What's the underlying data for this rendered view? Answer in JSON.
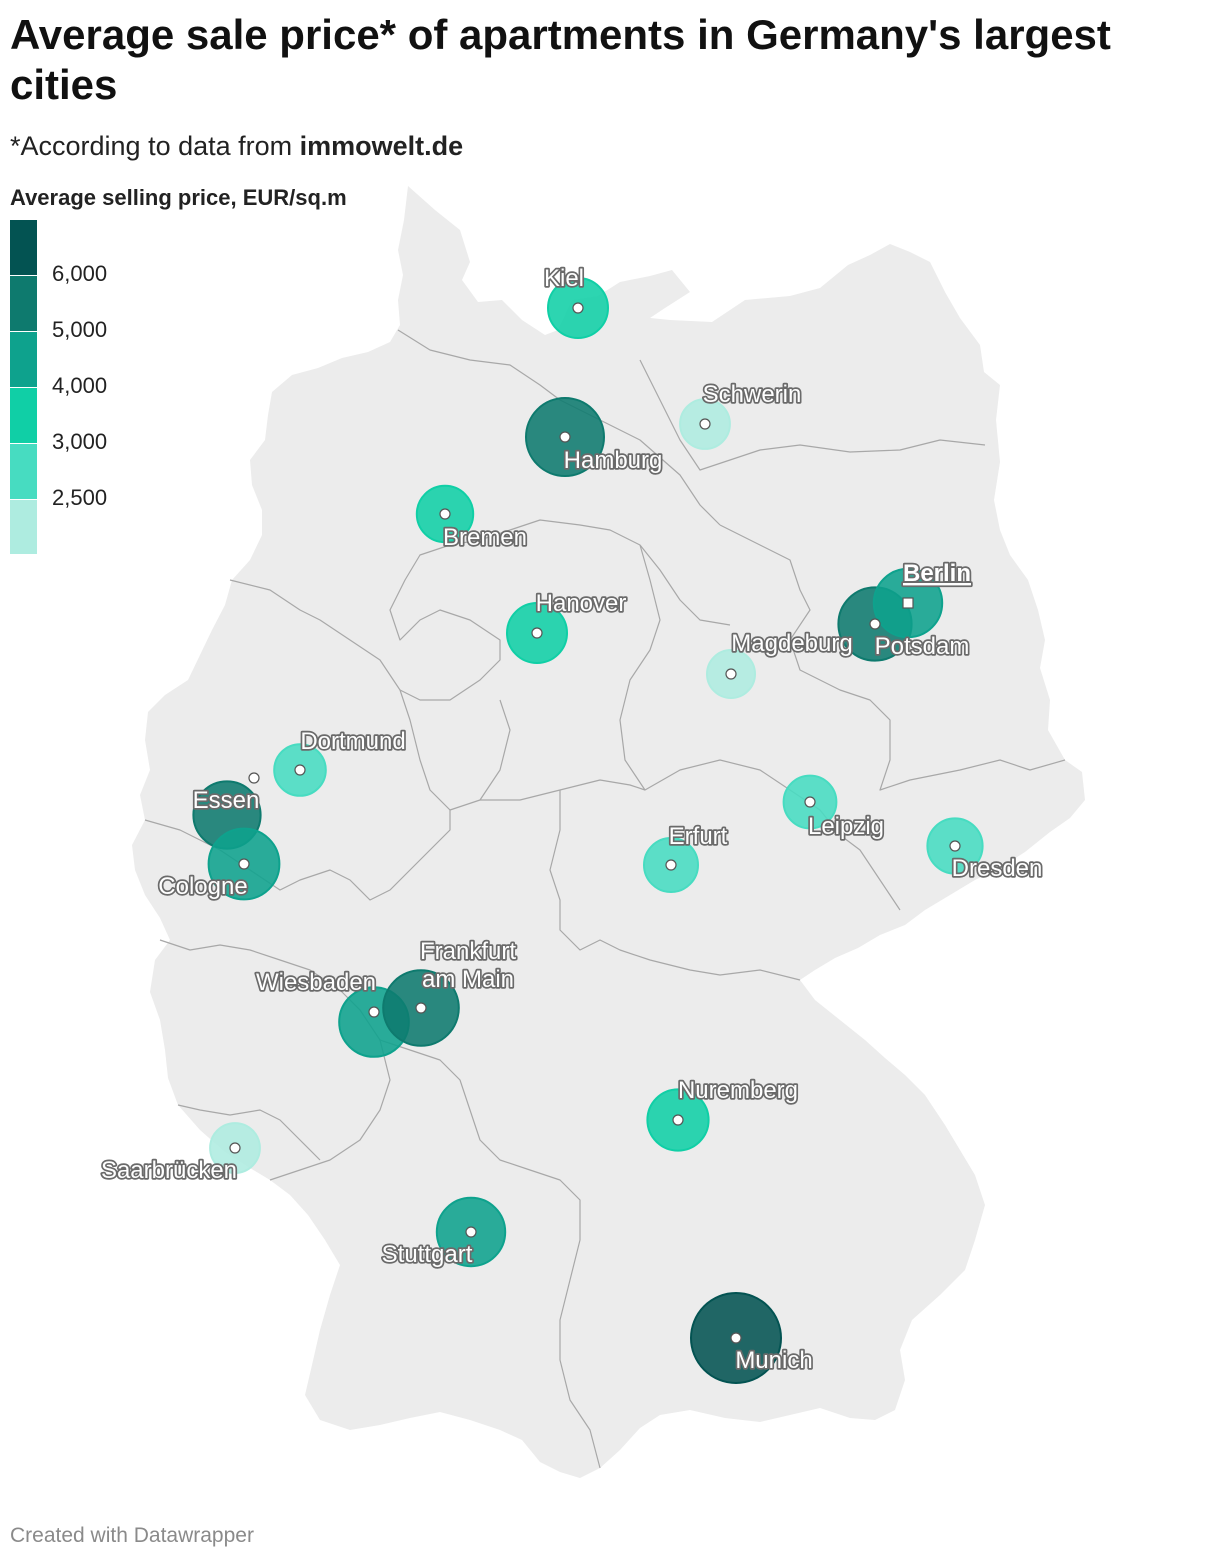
{
  "title": "Average sale price* of apartments in Germany's largest cities",
  "subtitle": {
    "prefix": "*According to data from ",
    "source": "immowelt.de"
  },
  "legend": {
    "title": "Average selling price, EUR/sq.m",
    "colors": [
      "#035352",
      "#0e7a6e",
      "#0ea28d",
      "#10cfa6",
      "#47dcc1",
      "#aeece0"
    ],
    "ticks": [
      "6,000",
      "5,000",
      "4,000",
      "3,000",
      "2,500"
    ]
  },
  "footer": "Created with Datawrapper",
  "map": {
    "land_color": "#ececec",
    "border_color": "#a8a8a8",
    "cities": [
      {
        "name": "Kiel",
        "lines": [
          "Kiel"
        ],
        "color": "#10cfa6",
        "size": 1.0
      },
      {
        "name": "Schwerin",
        "lines": [
          "Schwerin"
        ],
        "color": "#aeece0",
        "size": 0.83
      },
      {
        "name": "Hamburg",
        "lines": [
          "Hamburg"
        ],
        "color": "#0e7a6e",
        "size": 1.3
      },
      {
        "name": "Bremen",
        "lines": [
          "Bremen"
        ],
        "color": "#10cfa6",
        "size": 0.94
      },
      {
        "name": "Hanover",
        "lines": [
          "Hanover"
        ],
        "color": "#10cfa6",
        "size": 1.0
      },
      {
        "name": "Potsdam",
        "lines": [
          "Potsdam"
        ],
        "color": "#0e7a6e",
        "size": 1.22
      },
      {
        "name": "Berlin",
        "lines": [
          "Berlin"
        ],
        "color": "#0ea28d",
        "size": 1.14,
        "capital": true
      },
      {
        "name": "Magdeburg",
        "lines": [
          "Magdeburg"
        ],
        "color": "#aeece0",
        "size": 0.8
      },
      {
        "name": "Dortmund",
        "lines": [
          "Dortmund"
        ],
        "color": "#47dcc1",
        "size": 0.86
      },
      {
        "name": "Essen",
        "lines": [
          "Essen"
        ],
        "color": "#0e7a6e",
        "size": 1.12
      },
      {
        "name": "Cologne",
        "lines": [
          "Cologne"
        ],
        "color": "#0ea28d",
        "size": 1.18
      },
      {
        "name": "Leipzig",
        "lines": [
          "Leipzig"
        ],
        "color": "#47dcc1",
        "size": 0.88
      },
      {
        "name": "Erfurt",
        "lines": [
          "Erfurt"
        ],
        "color": "#47dcc1",
        "size": 0.9
      },
      {
        "name": "Dresden",
        "lines": [
          "Dresden"
        ],
        "color": "#47dcc1",
        "size": 0.92
      },
      {
        "name": "Wiesbaden",
        "lines": [
          "Wiesbaden"
        ],
        "color": "#0ea28d",
        "size": 1.16
      },
      {
        "name": "Frankfurt am Main",
        "lines": [
          "Frankfurt",
          "am Main"
        ],
        "color": "#0e7a6e",
        "size": 1.26
      },
      {
        "name": "Nuremberg",
        "lines": [
          "Nuremberg"
        ],
        "color": "#10cfa6",
        "size": 1.02
      },
      {
        "name": "Saarbrücken",
        "lines": [
          "Saarbrücken"
        ],
        "color": "#aeece0",
        "size": 0.83
      },
      {
        "name": "Stuttgart",
        "lines": [
          "Stuttgart"
        ],
        "color": "#0ea28d",
        "size": 1.14
      },
      {
        "name": "Munich",
        "lines": [
          "Munich"
        ],
        "color": "#035352",
        "size": 1.5
      }
    ]
  }
}
